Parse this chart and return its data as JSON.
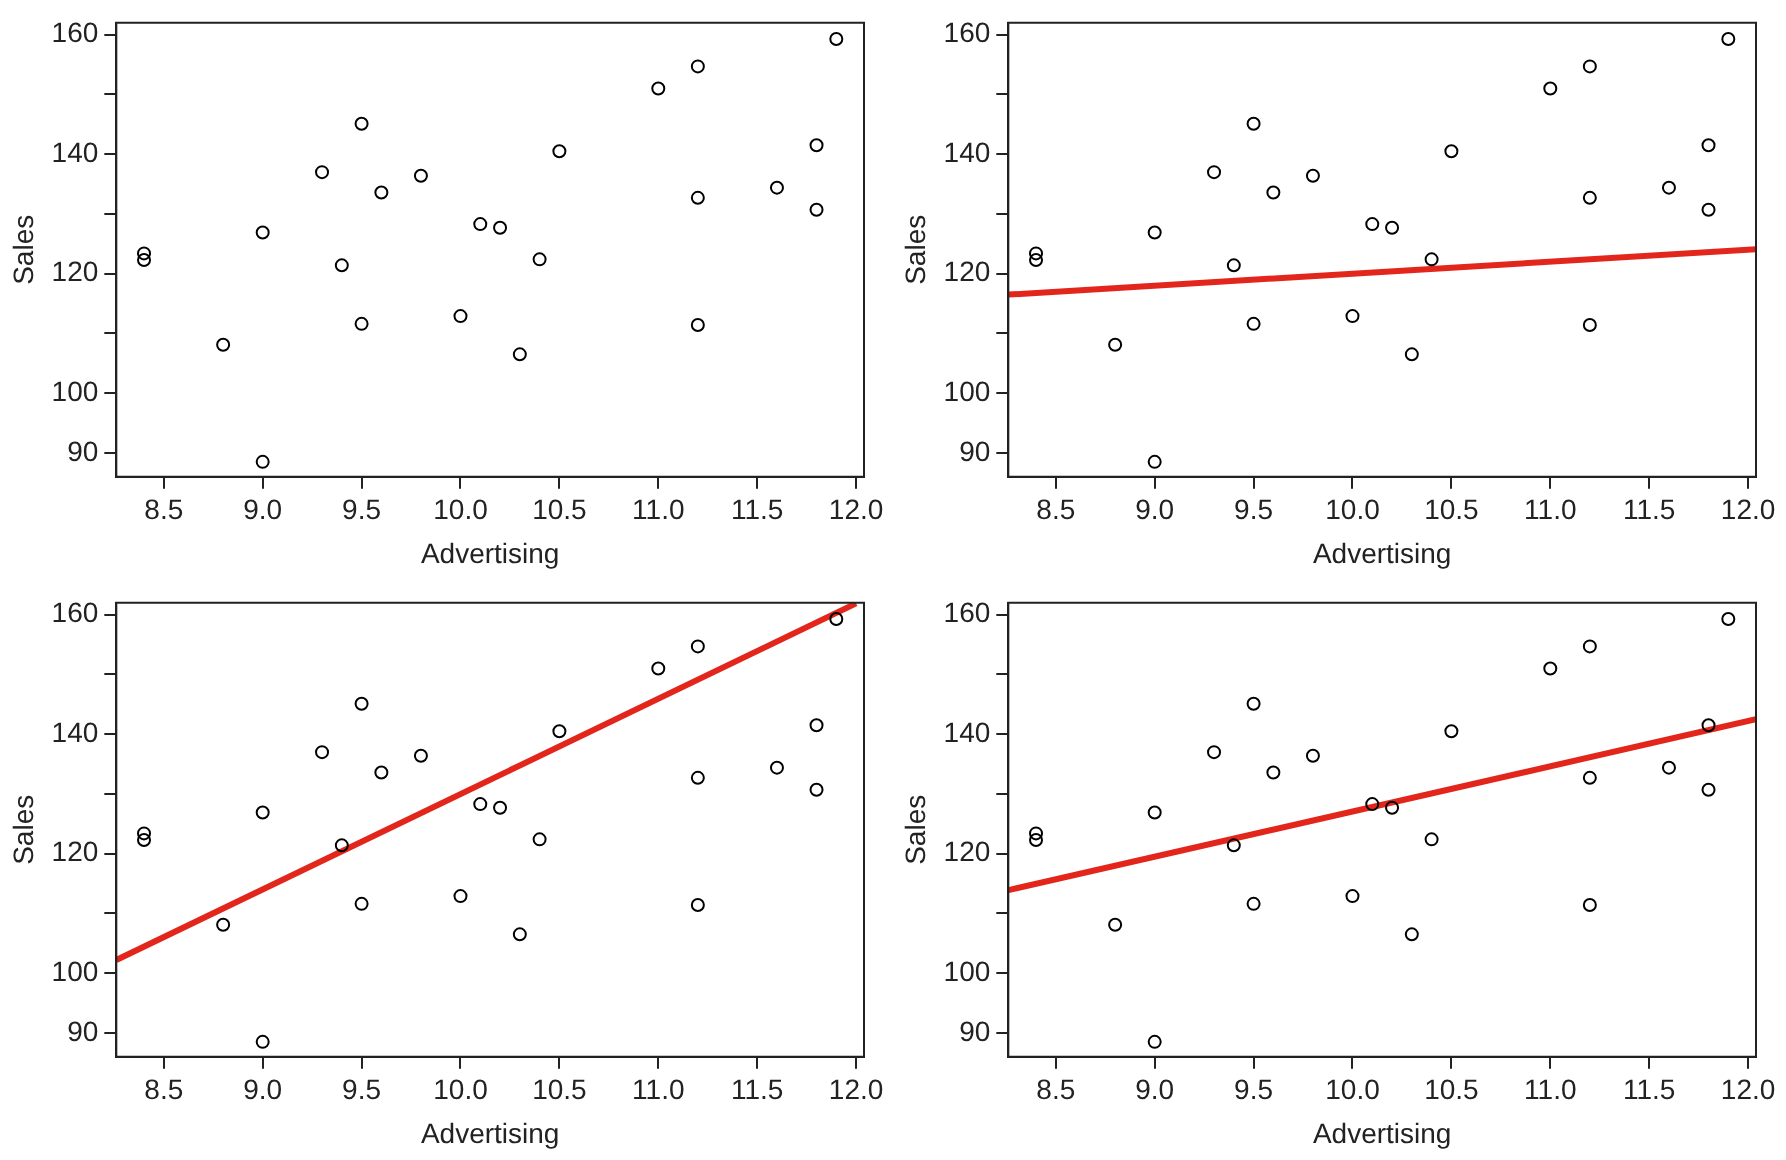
{
  "chart_data": [
    {
      "type": "scatter",
      "xlabel": "Advertising",
      "ylabel": "Sales",
      "xlim": [
        8.26,
        12.04
      ],
      "ylim": [
        86,
        162
      ],
      "xticks": [
        8.5,
        {
          "value": 9,
          "label": "9.0"
        },
        9.5,
        {
          "value": 10,
          "label": "10.0"
        },
        10.5,
        {
          "value": 11,
          "label": "11.0"
        },
        11.5,
        {
          "value": 12,
          "label": "12.0"
        }
      ],
      "yticks": [
        90,
        100,
        {
          "value": 110,
          "label": null
        },
        120,
        {
          "value": 130,
          "label": null
        },
        140,
        {
          "value": 150,
          "label": null
        },
        160
      ],
      "grid": false,
      "legend": false,
      "series": [
        {
          "marker": "circle",
          "color": "#000000",
          "x": [
            8.4,
            8.4,
            8.8,
            9.0,
            9.0,
            9.3,
            9.4,
            9.5,
            9.5,
            9.6,
            9.8,
            10.0,
            10.1,
            10.2,
            10.3,
            10.4,
            10.5,
            11.0,
            11.2,
            11.2,
            11.2,
            11.6,
            11.8,
            11.8,
            11.9
          ],
          "values": [
            123.4,
            122.3,
            108.1,
            126.9,
            88.5,
            137.0,
            121.4,
            145.1,
            111.6,
            133.6,
            136.4,
            112.9,
            128.3,
            127.7,
            106.5,
            122.4,
            140.5,
            151.0,
            154.7,
            132.7,
            111.4,
            134.4,
            141.5,
            130.7,
            159.3
          ]
        }
      ]
    },
    {
      "type": "scatter",
      "xlabel": "Advertising",
      "ylabel": "Sales",
      "xlim": [
        8.26,
        12.04
      ],
      "ylim": [
        86,
        162
      ],
      "xticks": [
        8.5,
        {
          "value": 9,
          "label": "9.0"
        },
        9.5,
        {
          "value": 10,
          "label": "10.0"
        },
        10.5,
        {
          "value": 11,
          "label": "11.0"
        },
        11.5,
        {
          "value": 12,
          "label": "12.0"
        }
      ],
      "yticks": [
        90,
        100,
        {
          "value": 110,
          "label": null
        },
        120,
        {
          "value": 130,
          "label": null
        },
        140,
        {
          "value": 150,
          "label": null
        },
        160
      ],
      "grid": false,
      "legend": false,
      "series": [
        {
          "marker": "circle",
          "color": "#000000",
          "x": [
            8.4,
            8.4,
            8.8,
            9.0,
            9.0,
            9.3,
            9.4,
            9.5,
            9.5,
            9.6,
            9.8,
            10.0,
            10.1,
            10.2,
            10.3,
            10.4,
            10.5,
            11.0,
            11.2,
            11.2,
            11.2,
            11.6,
            11.8,
            11.8,
            11.9
          ],
          "values": [
            123.4,
            122.3,
            108.1,
            126.9,
            88.5,
            137.0,
            121.4,
            145.1,
            111.6,
            133.6,
            136.4,
            112.9,
            128.3,
            127.7,
            106.5,
            122.4,
            140.5,
            151.0,
            154.7,
            132.7,
            111.4,
            134.4,
            141.5,
            130.7,
            159.3
          ]
        },
        {
          "type": "line",
          "marker": "none",
          "color": "#e3261c",
          "x": [
            8.26,
            12.04
          ],
          "values": [
            116.5,
            124.1
          ]
        }
      ]
    },
    {
      "type": "scatter",
      "xlabel": "Advertising",
      "ylabel": "Sales",
      "xlim": [
        8.26,
        12.04
      ],
      "ylim": [
        86,
        162
      ],
      "xticks": [
        8.5,
        {
          "value": 9,
          "label": "9.0"
        },
        9.5,
        {
          "value": 10,
          "label": "10.0"
        },
        10.5,
        {
          "value": 11,
          "label": "11.0"
        },
        11.5,
        {
          "value": 12,
          "label": "12.0"
        }
      ],
      "yticks": [
        90,
        100,
        {
          "value": 110,
          "label": null
        },
        120,
        {
          "value": 130,
          "label": null
        },
        140,
        {
          "value": 150,
          "label": null
        },
        160
      ],
      "grid": false,
      "legend": false,
      "series": [
        {
          "marker": "circle",
          "color": "#000000",
          "x": [
            8.4,
            8.4,
            8.8,
            9.0,
            9.0,
            9.3,
            9.4,
            9.5,
            9.5,
            9.6,
            9.8,
            10.0,
            10.1,
            10.2,
            10.3,
            10.4,
            10.5,
            11.0,
            11.2,
            11.2,
            11.2,
            11.6,
            11.8,
            11.8,
            11.9
          ],
          "values": [
            123.4,
            122.3,
            108.1,
            126.9,
            88.5,
            137.0,
            121.4,
            145.1,
            111.6,
            133.6,
            136.4,
            112.9,
            128.3,
            127.7,
            106.5,
            122.4,
            140.5,
            151.0,
            154.7,
            132.7,
            111.4,
            134.4,
            141.5,
            130.7,
            159.3
          ]
        },
        {
          "type": "line",
          "marker": "none",
          "color": "#e3261c",
          "x": [
            8.26,
            12.0
          ],
          "values": [
            102.2,
            161.9
          ]
        }
      ]
    },
    {
      "type": "scatter",
      "xlabel": "Advertising",
      "ylabel": "Sales",
      "xlim": [
        8.26,
        12.04
      ],
      "ylim": [
        86,
        162
      ],
      "xticks": [
        8.5,
        {
          "value": 9,
          "label": "9.0"
        },
        9.5,
        {
          "value": 10,
          "label": "10.0"
        },
        10.5,
        {
          "value": 11,
          "label": "11.0"
        },
        11.5,
        {
          "value": 12,
          "label": "12.0"
        }
      ],
      "yticks": [
        90,
        100,
        {
          "value": 110,
          "label": null
        },
        120,
        {
          "value": 130,
          "label": null
        },
        140,
        {
          "value": 150,
          "label": null
        },
        160
      ],
      "grid": false,
      "legend": false,
      "series": [
        {
          "marker": "circle",
          "color": "#000000",
          "x": [
            8.4,
            8.4,
            8.8,
            9.0,
            9.0,
            9.3,
            9.4,
            9.5,
            9.5,
            9.6,
            9.8,
            10.0,
            10.1,
            10.2,
            10.3,
            10.4,
            10.5,
            11.0,
            11.2,
            11.2,
            11.2,
            11.6,
            11.8,
            11.8,
            11.9
          ],
          "values": [
            123.4,
            122.3,
            108.1,
            126.9,
            88.5,
            137.0,
            121.4,
            145.1,
            111.6,
            133.6,
            136.4,
            112.9,
            128.3,
            127.7,
            106.5,
            122.4,
            140.5,
            151.0,
            154.7,
            132.7,
            111.4,
            134.4,
            141.5,
            130.7,
            159.3
          ]
        },
        {
          "type": "line",
          "marker": "none",
          "color": "#e3261c",
          "x": [
            8.26,
            12.04
          ],
          "values": [
            113.9,
            142.5
          ]
        }
      ]
    }
  ]
}
